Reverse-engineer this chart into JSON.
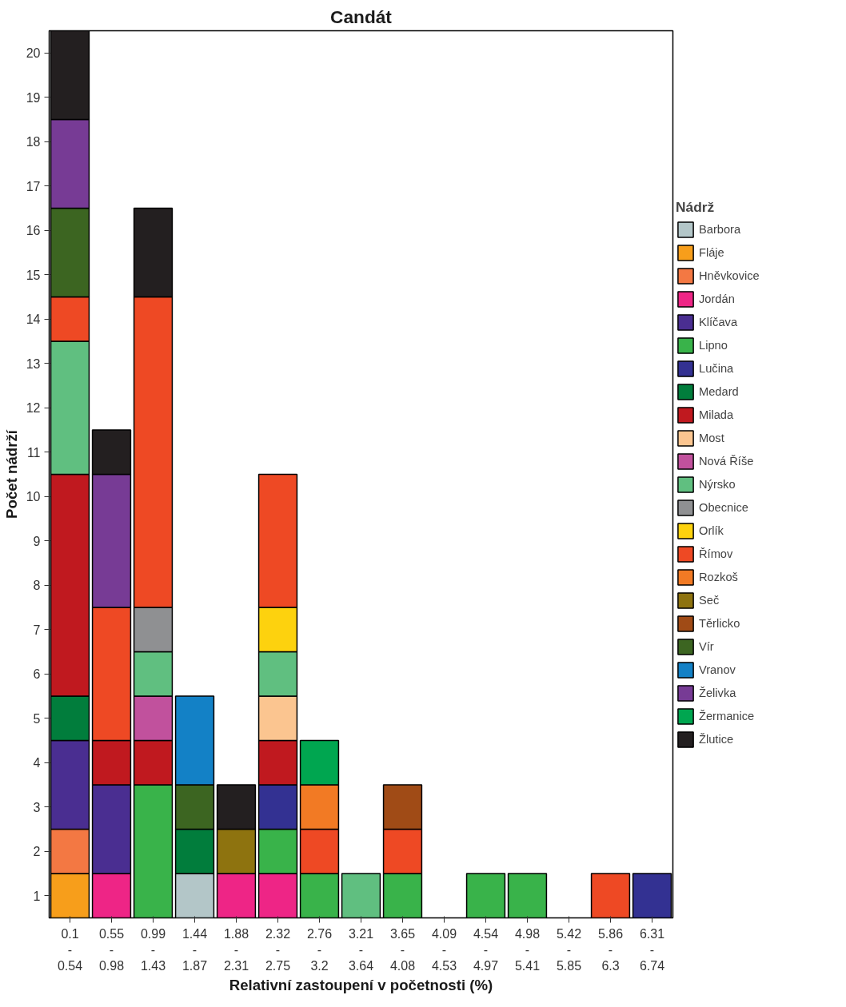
{
  "chart_data": {
    "type": "bar",
    "stacked": true,
    "title": "Candát",
    "xlabel": "Relativní zastoupení v početnosti (%)",
    "ylabel": "Počet nádrží",
    "legend_title": "Nádrž",
    "legend": "right",
    "grid": false,
    "categories": [
      "0.1\n-\n0.54",
      "0.55\n-\n0.98",
      "0.99\n-\n1.43",
      "1.44\n-\n1.87",
      "1.88\n-\n2.31",
      "2.32\n-\n2.75",
      "2.76\n-\n3.2",
      "3.21\n-\n3.64",
      "3.65\n-\n4.08",
      "4.09\n-\n4.53",
      "4.54\n-\n4.97",
      "4.98\n-\n5.41",
      "5.42\n-\n5.85",
      "5.86\n-\n6.3",
      "6.31\n-\n6.74"
    ],
    "ylim": [
      0,
      20
    ],
    "yticks": [
      {
        "value": 0.5,
        "label": "1"
      },
      {
        "value": 1.5,
        "label": "2"
      },
      {
        "value": 2.5,
        "label": "3"
      },
      {
        "value": 3.5,
        "label": "4"
      },
      {
        "value": 4.5,
        "label": "5"
      },
      {
        "value": 5.5,
        "label": "6"
      },
      {
        "value": 6.5,
        "label": "7"
      },
      {
        "value": 7.5,
        "label": "8"
      },
      {
        "value": 8.5,
        "label": "9"
      },
      {
        "value": 9.5,
        "label": "10"
      },
      {
        "value": 10.5,
        "label": "11"
      },
      {
        "value": 11.5,
        "label": "12"
      },
      {
        "value": 12.5,
        "label": "13"
      },
      {
        "value": 13.5,
        "label": "14"
      },
      {
        "value": 14.5,
        "label": "15"
      },
      {
        "value": 15.5,
        "label": "16"
      },
      {
        "value": 16.5,
        "label": "17"
      },
      {
        "value": 17.5,
        "label": "18"
      },
      {
        "value": 18.5,
        "label": "19"
      },
      {
        "value": 19.5,
        "label": "20"
      }
    ],
    "series": [
      {
        "name": "Barbora",
        "color": "#b3c6c8",
        "values": [
          null,
          null,
          null,
          1,
          null,
          null,
          null,
          null,
          null,
          null,
          null,
          null,
          null,
          null,
          null
        ]
      },
      {
        "name": "Fláje",
        "color": "#f79e1b",
        "values": [
          1,
          null,
          null,
          null,
          null,
          null,
          null,
          null,
          null,
          null,
          null,
          null,
          null,
          null,
          null
        ]
      },
      {
        "name": "Hněvkovice",
        "color": "#f37843",
        "values": [
          1,
          null,
          null,
          null,
          null,
          null,
          null,
          null,
          null,
          null,
          null,
          null,
          null,
          null,
          null
        ]
      },
      {
        "name": "Jordán",
        "color": "#ee2586",
        "values": [
          null,
          1,
          null,
          null,
          1,
          1,
          null,
          null,
          null,
          null,
          null,
          null,
          null,
          null,
          null
        ]
      },
      {
        "name": "Klíčava",
        "color": "#4a2e91",
        "values": [
          2,
          2,
          null,
          null,
          null,
          null,
          null,
          null,
          null,
          null,
          null,
          null,
          null,
          null,
          null
        ]
      },
      {
        "name": "Lipno",
        "color": "#39b34a",
        "values": [
          null,
          null,
          3,
          null,
          null,
          1,
          1,
          null,
          1,
          null,
          1,
          1,
          null,
          null,
          null
        ]
      },
      {
        "name": "Lučina",
        "color": "#333192",
        "values": [
          null,
          null,
          null,
          null,
          null,
          1,
          null,
          null,
          null,
          null,
          null,
          null,
          null,
          null,
          1
        ]
      },
      {
        "name": "Medard",
        "color": "#017d3c",
        "values": [
          1,
          null,
          null,
          1,
          null,
          null,
          null,
          null,
          null,
          null,
          null,
          null,
          null,
          null,
          null
        ]
      },
      {
        "name": "Milada",
        "color": "#c0191f",
        "values": [
          5,
          1,
          1,
          null,
          null,
          1,
          null,
          null,
          null,
          null,
          null,
          null,
          null,
          null,
          null
        ]
      },
      {
        "name": "Most",
        "color": "#fbc590",
        "values": [
          null,
          null,
          null,
          null,
          null,
          1,
          null,
          null,
          null,
          null,
          null,
          null,
          null,
          null,
          null
        ]
      },
      {
        "name": "Nová Říše",
        "color": "#c1519d",
        "values": [
          null,
          null,
          1,
          null,
          null,
          null,
          null,
          null,
          null,
          null,
          null,
          null,
          null,
          null,
          null
        ]
      },
      {
        "name": "Nýrsko",
        "color": "#60bf80",
        "values": [
          3,
          null,
          1,
          null,
          null,
          1,
          null,
          1,
          null,
          null,
          null,
          null,
          null,
          null,
          null
        ]
      },
      {
        "name": "Obecnice",
        "color": "#8f9092",
        "values": [
          null,
          null,
          1,
          null,
          null,
          null,
          null,
          null,
          null,
          null,
          null,
          null,
          null,
          null,
          null
        ]
      },
      {
        "name": "Orlík",
        "color": "#fdd20e",
        "values": [
          null,
          null,
          null,
          null,
          null,
          1,
          null,
          null,
          null,
          null,
          null,
          null,
          null,
          null,
          null
        ]
      },
      {
        "name": "Římov",
        "color": "#ee4924",
        "values": [
          1,
          3,
          7,
          null,
          null,
          3,
          1,
          null,
          1,
          null,
          null,
          null,
          null,
          1,
          null
        ]
      },
      {
        "name": "Rozkoš",
        "color": "#f27a24",
        "values": [
          null,
          null,
          null,
          null,
          null,
          null,
          1,
          null,
          null,
          null,
          null,
          null,
          null,
          null,
          null
        ]
      },
      {
        "name": "Seč",
        "color": "#8e730f",
        "values": [
          null,
          null,
          null,
          null,
          1,
          null,
          null,
          null,
          null,
          null,
          null,
          null,
          null,
          null,
          null
        ]
      },
      {
        "name": "Těrlicko",
        "color": "#a04b16",
        "values": [
          null,
          null,
          null,
          null,
          null,
          null,
          null,
          null,
          1,
          null,
          null,
          null,
          null,
          null,
          null
        ]
      },
      {
        "name": "Vír",
        "color": "#3c6521",
        "values": [
          2,
          null,
          null,
          1,
          null,
          null,
          null,
          null,
          null,
          null,
          null,
          null,
          null,
          null,
          null
        ]
      },
      {
        "name": "Vranov",
        "color": "#1381c6",
        "values": [
          null,
          null,
          null,
          2,
          null,
          null,
          null,
          null,
          null,
          null,
          null,
          null,
          null,
          null,
          null
        ]
      },
      {
        "name": "Želivka",
        "color": "#773b95",
        "values": [
          2,
          3,
          null,
          null,
          null,
          null,
          null,
          null,
          null,
          null,
          null,
          null,
          null,
          null,
          null
        ]
      },
      {
        "name": "Žermanice",
        "color": "#00a650",
        "values": [
          null,
          null,
          null,
          null,
          null,
          null,
          1,
          null,
          null,
          null,
          null,
          null,
          null,
          null,
          null
        ]
      },
      {
        "name": "Žlutice",
        "color": "#231f20",
        "values": [
          2,
          1,
          2,
          null,
          1,
          null,
          null,
          null,
          null,
          null,
          null,
          null,
          null,
          null,
          null
        ]
      }
    ]
  }
}
